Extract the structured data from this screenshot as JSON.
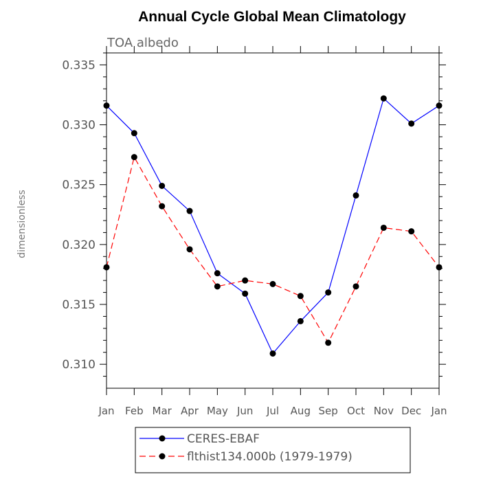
{
  "chart_data": {
    "type": "line",
    "title": "Annual Cycle Global Mean Climatology",
    "subtitle": "TOA albedo",
    "xlabel": "",
    "ylabel": "dimensionless",
    "categories": [
      "Jan",
      "Feb",
      "Mar",
      "Apr",
      "May",
      "Jun",
      "Jul",
      "Aug",
      "Sep",
      "Oct",
      "Nov",
      "Dec",
      "Jan"
    ],
    "ylim": [
      0.308,
      0.336
    ],
    "yticks": [
      0.31,
      0.315,
      0.32,
      0.325,
      0.33,
      0.335
    ],
    "ytick_labels": [
      "0.310",
      "0.315",
      "0.320",
      "0.325",
      "0.330",
      "0.335"
    ],
    "legend_position": "bottom-center",
    "series": [
      {
        "name": "CERES-EBAF",
        "color": "#0000ff",
        "dash": "solid",
        "values": [
          0.3316,
          0.3293,
          0.3249,
          0.3228,
          0.3176,
          0.3159,
          0.3109,
          0.3136,
          0.316,
          0.3241,
          0.3322,
          0.3301,
          0.3316
        ]
      },
      {
        "name": "flthist134.000b (1979-1979)",
        "color": "#ff0000",
        "dash": "dashed",
        "values": [
          0.3181,
          0.3273,
          0.3232,
          0.3196,
          0.3165,
          0.317,
          0.3167,
          0.3157,
          0.3118,
          0.3165,
          0.3214,
          0.3211,
          0.3181
        ]
      }
    ]
  }
}
